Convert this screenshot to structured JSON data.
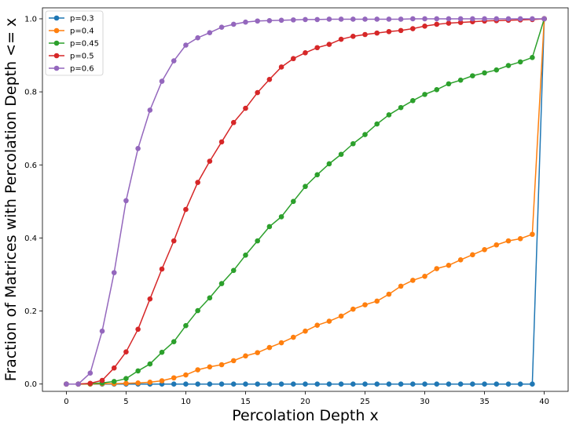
{
  "chart_data": {
    "type": "line",
    "title": "",
    "xlabel": "Percolation Depth x",
    "ylabel": "Fraction of Matrices with Percolation Depth <= x",
    "xlim": [
      -2,
      42
    ],
    "ylim": [
      -0.02,
      1.03
    ],
    "xticks": [
      0,
      5,
      10,
      15,
      20,
      25,
      30,
      35,
      40
    ],
    "yticks": [
      0.0,
      0.2,
      0.4,
      0.6,
      0.8,
      1.0
    ],
    "xtick_labels": [
      "0",
      "5",
      "10",
      "15",
      "20",
      "25",
      "30",
      "35",
      "40"
    ],
    "ytick_labels": [
      "0.0",
      "0.2",
      "0.4",
      "0.6",
      "0.8",
      "1.0"
    ],
    "grid": false,
    "legend_position": "top-left",
    "x": [
      0,
      1,
      2,
      3,
      4,
      5,
      6,
      7,
      8,
      9,
      10,
      11,
      12,
      13,
      14,
      15,
      16,
      17,
      18,
      19,
      20,
      21,
      22,
      23,
      24,
      25,
      26,
      27,
      28,
      29,
      30,
      31,
      32,
      33,
      34,
      35,
      36,
      37,
      38,
      39,
      40
    ],
    "series": [
      {
        "name": "p=0.3",
        "color": "#1f77b4",
        "values": [
          0,
          0,
          0,
          0,
          0,
          0,
          0,
          0,
          0,
          0,
          0,
          0,
          0,
          0,
          0,
          0,
          0,
          0,
          0,
          0,
          0,
          0,
          0,
          0,
          0,
          0,
          0,
          0,
          0,
          0,
          0,
          0,
          0,
          0,
          0,
          0,
          0,
          0,
          0,
          0,
          1.0
        ]
      },
      {
        "name": "p=0.4",
        "color": "#ff7f0e",
        "values": [
          0,
          0,
          0,
          0.001,
          0.001,
          0.002,
          0.003,
          0.005,
          0.009,
          0.017,
          0.025,
          0.039,
          0.047,
          0.053,
          0.064,
          0.077,
          0.086,
          0.1,
          0.113,
          0.128,
          0.145,
          0.161,
          0.172,
          0.186,
          0.205,
          0.217,
          0.227,
          0.246,
          0.268,
          0.284,
          0.295,
          0.316,
          0.325,
          0.34,
          0.354,
          0.368,
          0.381,
          0.392,
          0.398,
          0.41,
          1.0
        ]
      },
      {
        "name": "p=0.45",
        "color": "#2ca02c",
        "values": [
          0,
          0,
          0.001,
          0.003,
          0.007,
          0.015,
          0.036,
          0.055,
          0.087,
          0.116,
          0.16,
          0.201,
          0.236,
          0.275,
          0.311,
          0.353,
          0.392,
          0.431,
          0.458,
          0.5,
          0.541,
          0.573,
          0.603,
          0.629,
          0.658,
          0.683,
          0.712,
          0.737,
          0.757,
          0.776,
          0.793,
          0.806,
          0.822,
          0.832,
          0.844,
          0.852,
          0.86,
          0.872,
          0.882,
          0.894,
          1.0
        ]
      },
      {
        "name": "p=0.5",
        "color": "#d62728",
        "values": [
          0,
          0,
          0.002,
          0.01,
          0.044,
          0.088,
          0.15,
          0.233,
          0.315,
          0.392,
          0.478,
          0.552,
          0.61,
          0.663,
          0.716,
          0.755,
          0.798,
          0.834,
          0.868,
          0.891,
          0.907,
          0.921,
          0.93,
          0.944,
          0.952,
          0.957,
          0.961,
          0.965,
          0.968,
          0.973,
          0.98,
          0.985,
          0.988,
          0.99,
          0.992,
          0.994,
          0.995,
          0.996,
          0.997,
          0.998,
          1.0
        ]
      },
      {
        "name": "p=0.6",
        "color": "#9467bd",
        "values": [
          0,
          0,
          0.03,
          0.145,
          0.305,
          0.502,
          0.645,
          0.75,
          0.829,
          0.885,
          0.928,
          0.948,
          0.962,
          0.977,
          0.985,
          0.991,
          0.994,
          0.995,
          0.996,
          0.997,
          0.998,
          0.998,
          0.999,
          0.999,
          0.999,
          0.999,
          0.999,
          0.999,
          0.999,
          1.0,
          1.0,
          1.0,
          1.0,
          1.0,
          1.0,
          1.0,
          1.0,
          1.0,
          1.0,
          1.0,
          1.0
        ]
      }
    ]
  }
}
